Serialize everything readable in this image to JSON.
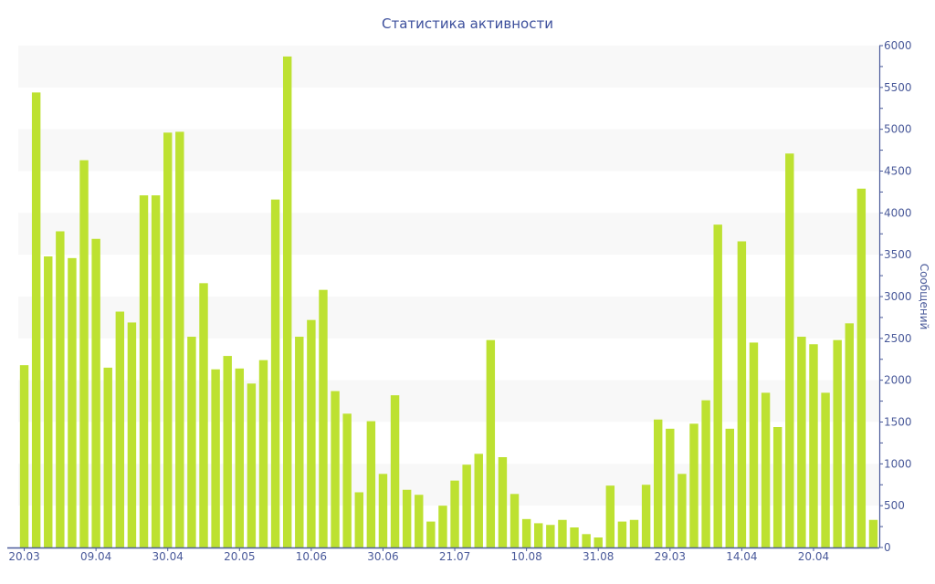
{
  "chart_data": {
    "type": "bar",
    "title": "Статистика активности",
    "xlabel": "",
    "ylabel": "Сообщений",
    "ylim": [
      0,
      6000
    ],
    "y_ticks": [
      0,
      500,
      1000,
      1500,
      2000,
      2500,
      3000,
      3500,
      4000,
      4500,
      5000,
      5500,
      6000
    ],
    "y_axis_side": "right",
    "grid": "alternating horizontal bands",
    "x_tick_labels": [
      {
        "index": 0,
        "label": "20.03"
      },
      {
        "index": 6,
        "label": "09.04"
      },
      {
        "index": 12,
        "label": "30.04"
      },
      {
        "index": 18,
        "label": "20.05"
      },
      {
        "index": 24,
        "label": "10.06"
      },
      {
        "index": 30,
        "label": "30.06"
      },
      {
        "index": 36,
        "label": "21.07"
      },
      {
        "index": 42,
        "label": "10.08"
      },
      {
        "index": 48,
        "label": "31.08"
      },
      {
        "index": 54,
        "label": "29.03"
      },
      {
        "index": 60,
        "label": "14.04"
      },
      {
        "index": 66,
        "label": "20.04"
      }
    ],
    "values": [
      2180,
      5440,
      3480,
      3780,
      3460,
      4630,
      3690,
      2150,
      2820,
      2690,
      4210,
      4210,
      4960,
      4970,
      2520,
      3160,
      2130,
      2290,
      2140,
      1960,
      2240,
      4160,
      5870,
      2520,
      2720,
      3080,
      1870,
      1600,
      660,
      1510,
      880,
      1820,
      690,
      630,
      310,
      500,
      800,
      990,
      1120,
      2480,
      1080,
      640,
      340,
      290,
      270,
      330,
      240,
      160,
      120,
      740,
      310,
      330,
      750,
      1530,
      1420,
      880,
      1480,
      1760,
      3860,
      1420,
      3660,
      2450,
      1850,
      1440,
      4710,
      2520,
      2430,
      1850,
      2480,
      2680,
      4290,
      330
    ],
    "colors": {
      "bar": "#bde131",
      "axis": "#4a5a9a",
      "title": "#3c4f9c",
      "band": "#f8f8f8"
    }
  }
}
